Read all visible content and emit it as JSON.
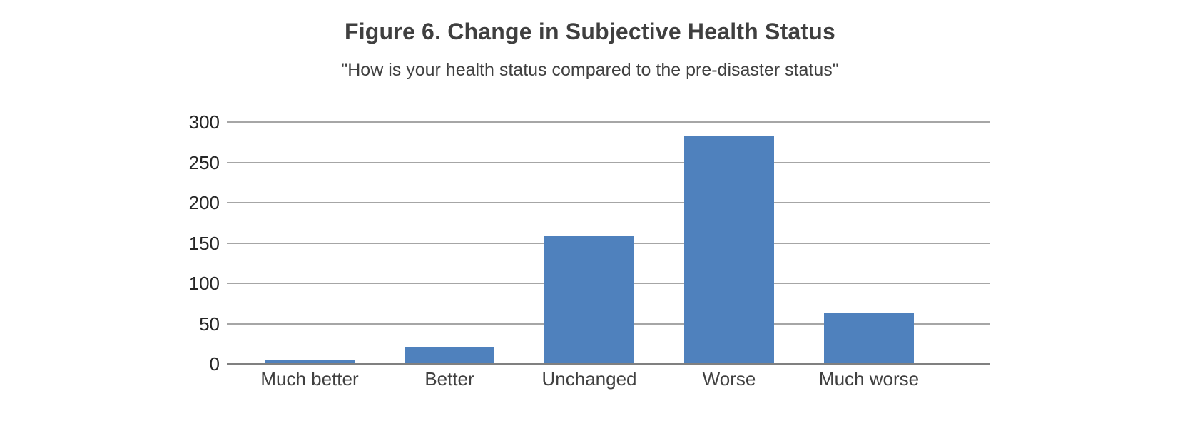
{
  "figure": {
    "title": "Figure 6. Change in Subjective Health Status",
    "subtitle": "\"How is your health status compared to the pre-disaster status\""
  },
  "chart_data": {
    "type": "bar",
    "title": "Figure 6. Change in Subjective Health Status",
    "subtitle": "\"How is your health status compared to the pre-disaster status\"",
    "categories": [
      "Much better",
      "Better",
      "Unchanged",
      "Worse",
      "Much worse"
    ],
    "values": [
      5,
      21,
      158,
      282,
      63
    ],
    "ylim": [
      0,
      300
    ],
    "ytick_interval": 50,
    "yticks": [
      0,
      50,
      100,
      150,
      200,
      250,
      300
    ],
    "grid": true,
    "legend": "none",
    "bar_color": "#4f81bd",
    "gridline_color": "#a6a6a6",
    "axis_color": "#808080",
    "text_color": "#404040"
  }
}
